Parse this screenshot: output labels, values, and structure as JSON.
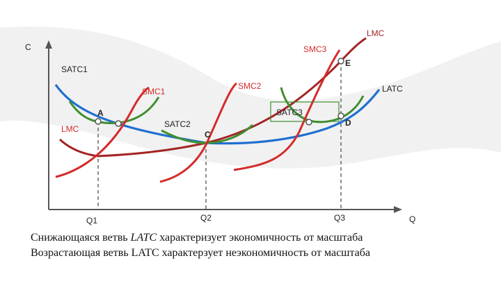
{
  "chart_data": {
    "type": "line",
    "axes": {
      "y_label": "C",
      "x_label": "Q"
    },
    "x_ticks": [
      "Q1",
      "Q2",
      "Q3"
    ],
    "curves": [
      {
        "label": "LATC",
        "color": "#1f6fd0"
      },
      {
        "label": "LMC",
        "color": "#a42525"
      },
      {
        "label": "SATC1",
        "color": "#3f8f2f"
      },
      {
        "label": "SATC2",
        "color": "#3f8f2f"
      },
      {
        "label": "SATC3",
        "color": "#3f8f2f"
      },
      {
        "label": "SMC1",
        "color": "#d42a2a"
      },
      {
        "label": "SMC2",
        "color": "#d42a2a"
      },
      {
        "label": "SMC3",
        "color": "#d42a2a"
      }
    ],
    "points": [
      "A",
      "C",
      "D",
      "E"
    ]
  },
  "caption": {
    "line1_pre": "Снижающаяся ветвь ",
    "line1_em": "LATC",
    "line1_post": " характеризует экономичность от масштаба",
    "line2": "Возрастающая ветвь LATC характерзует неэкономичность от масштаба"
  }
}
